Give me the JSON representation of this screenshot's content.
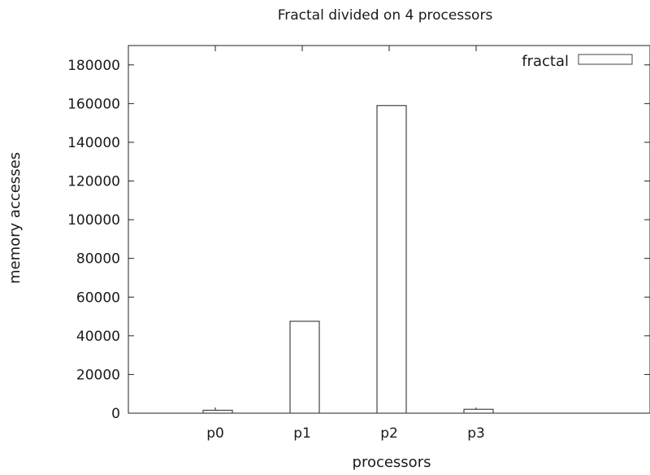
{
  "chart_data": {
    "type": "bar",
    "title": "Fractal divided on 4 processors",
    "xlabel": "processors",
    "ylabel": "memory accesses",
    "categories": [
      "p0",
      "p1",
      "p2",
      "p3"
    ],
    "series": [
      {
        "name": "fractal",
        "values": [
          1500,
          47500,
          159000,
          2000
        ]
      }
    ],
    "ylim": [
      0,
      190000
    ],
    "yticks": [
      0,
      20000,
      40000,
      60000,
      80000,
      100000,
      120000,
      140000,
      160000,
      180000
    ],
    "xrange": [
      -1,
      5
    ],
    "bar_fill": "#ffffff",
    "bar_stroke": "#444444",
    "legend_position": "top-right",
    "grid": false
  }
}
